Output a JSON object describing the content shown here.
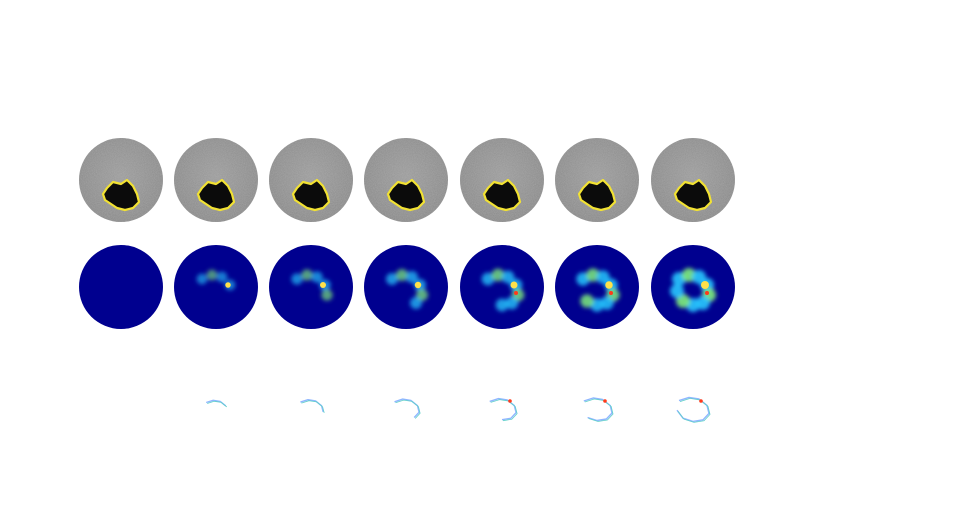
{
  "figure": {
    "rows": [
      {
        "name": "grayscale-slices-with-yellow-outline",
        "count": 7
      },
      {
        "name": "jet-colormap-heatmaps",
        "count": 7
      },
      {
        "name": "contour-outlines",
        "count": 6
      }
    ],
    "colors": {
      "background": "#ffffff",
      "grayscale_disc": "#8f8f8f",
      "lesion_dark": "#0b0b0b",
      "lesion_outline": "#f2e233",
      "heatmap_base": "#00008f",
      "jet_cyan": "#27c8ff",
      "jet_green": "#7ff07a",
      "jet_yellow": "#ffe14a",
      "jet_red": "#ff3a1a",
      "contour_light_blue": "#8fb6ff",
      "contour_teal": "#5fd0c8"
    }
  }
}
